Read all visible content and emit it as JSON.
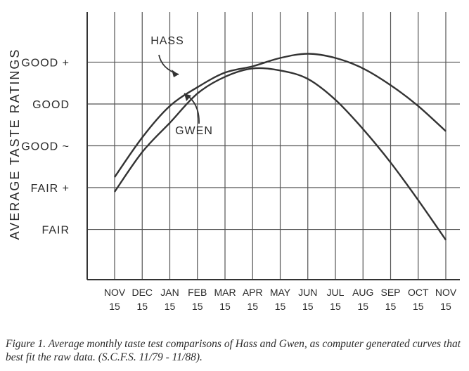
{
  "chart_data": {
    "type": "line",
    "ylabel": "AVERAGE TASTE RATINGS",
    "xlabel": "",
    "categories": [
      {
        "month": "NOV",
        "day": "15"
      },
      {
        "month": "DEC",
        "day": "15"
      },
      {
        "month": "JAN",
        "day": "15"
      },
      {
        "month": "FEB",
        "day": "15"
      },
      {
        "month": "MAR",
        "day": "15"
      },
      {
        "month": "APR",
        "day": "15"
      },
      {
        "month": "MAY",
        "day": "15"
      },
      {
        "month": "JUN",
        "day": "15"
      },
      {
        "month": "JUL",
        "day": "15"
      },
      {
        "month": "AUG",
        "day": "15"
      },
      {
        "month": "SEP",
        "day": "15"
      },
      {
        "month": "OCT",
        "day": "15"
      },
      {
        "month": "NOV",
        "day": "15"
      }
    ],
    "y_ticks": [
      {
        "label": "FAIR",
        "value": 1
      },
      {
        "label": "FAIR +",
        "value": 2
      },
      {
        "label": "GOOD ~",
        "value": 3
      },
      {
        "label": "GOOD",
        "value": 4
      },
      {
        "label": "GOOD +",
        "value": 5
      }
    ],
    "ylim": [
      -0.2,
      6.2
    ],
    "grid": true,
    "series": [
      {
        "name": "HASS",
        "values": [
          2.25,
          3.2,
          3.95,
          4.4,
          4.75,
          4.9,
          5.1,
          5.2,
          5.1,
          4.85,
          4.45,
          3.95,
          3.35
        ]
      },
      {
        "name": "GWEN",
        "values": [
          1.9,
          2.85,
          3.55,
          4.25,
          4.65,
          4.85,
          4.8,
          4.6,
          4.1,
          3.4,
          2.6,
          1.7,
          0.75
        ]
      }
    ],
    "annotations": [
      {
        "text": "HASS",
        "series": "HASS"
      },
      {
        "text": "GWEN",
        "series": "GWEN"
      }
    ],
    "line_color": "#333333"
  },
  "caption": "Figure 1.  Average monthly taste test comparisons of Hass and Gwen, as computer generated curves that best fit the raw data.  (S.C.F.S. 11/79 - 11/88)."
}
